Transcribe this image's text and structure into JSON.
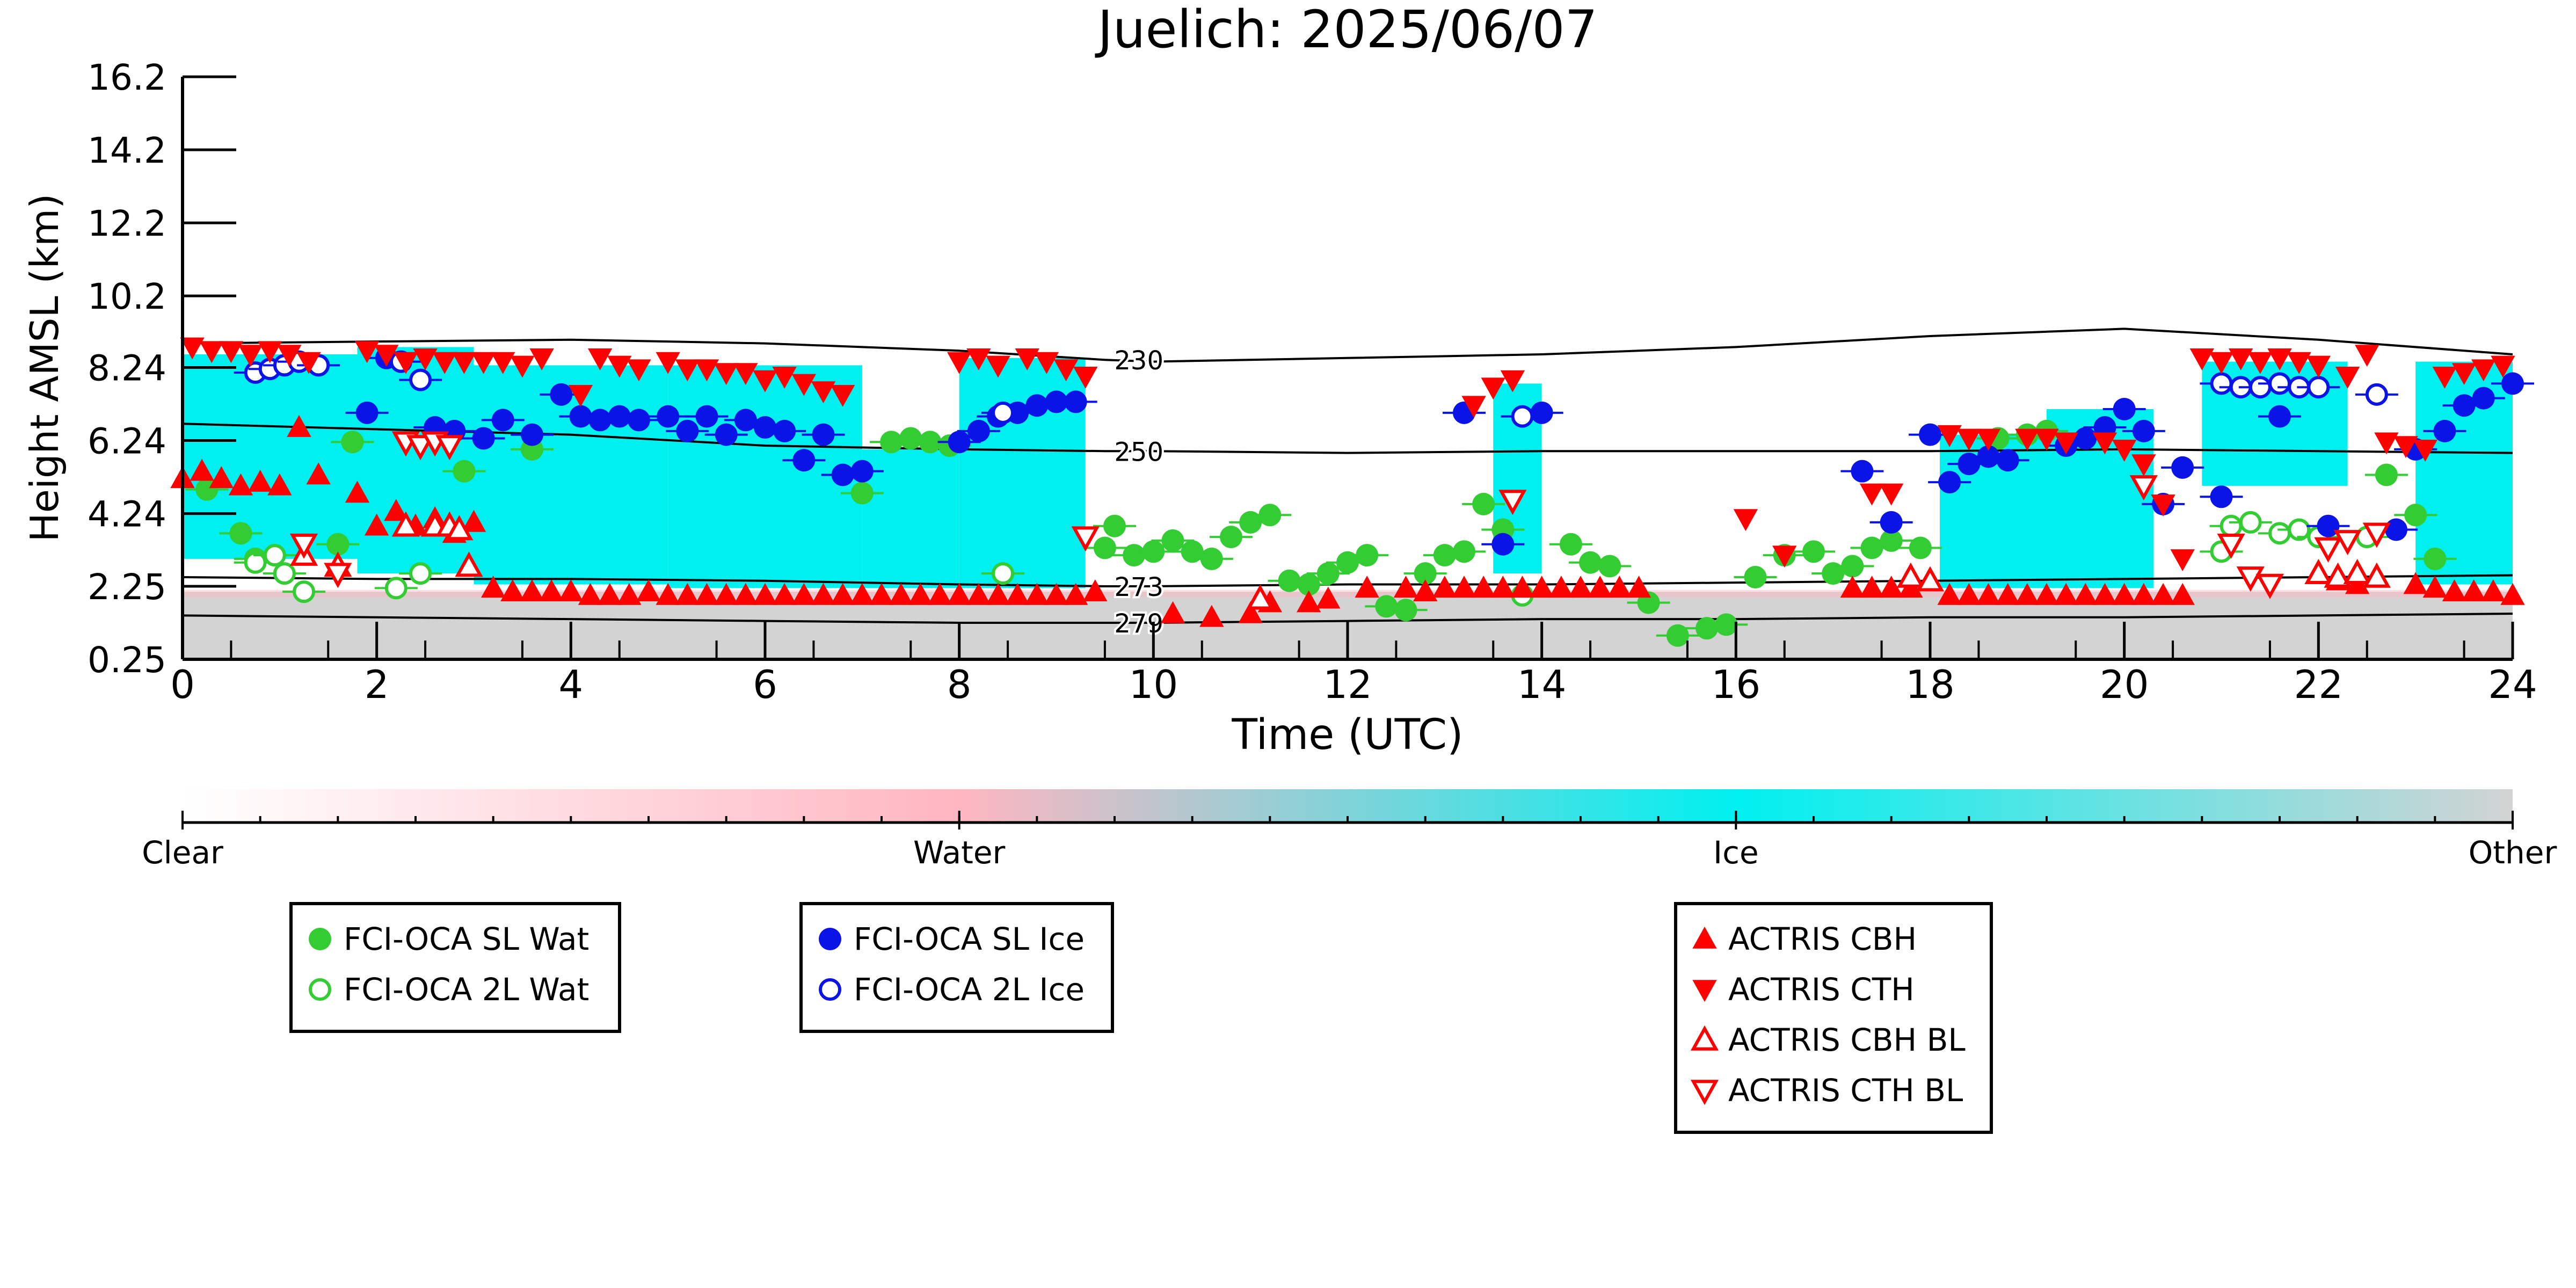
{
  "chart_data": {
    "type": "scatter",
    "title": "Juelich: 2025/06/07",
    "xlabel": "Time (UTC)",
    "ylabel": "Height AMSL (km)",
    "xlim": [
      0,
      24
    ],
    "ylim": [
      0.25,
      16.2
    ],
    "x_ticks": [
      0,
      2,
      4,
      6,
      8,
      10,
      12,
      14,
      16,
      18,
      20,
      22,
      24
    ],
    "y_ticks": [
      0.25,
      2.25,
      4.24,
      6.24,
      8.24,
      10.2,
      12.2,
      14.2,
      16.2
    ],
    "y_tick_labels": [
      "0.25",
      "2.25",
      "4.24",
      "6.24",
      "8.24",
      "10.2",
      "12.2",
      "14.2",
      "16.2"
    ],
    "grid": false,
    "background_layers": {
      "description_colors": {
        "clear": "#ffffff",
        "water": "#ffb6c1",
        "ice": "#00f0f0",
        "other": "#d3d3d3"
      },
      "ice_cloud_blocks": [
        {
          "x0": 0.0,
          "x1": 1.8,
          "top": 8.6,
          "bottom": 3.0
        },
        {
          "x0": 1.8,
          "x1": 3.0,
          "top": 8.8,
          "bottom": 2.6
        },
        {
          "x0": 3.0,
          "x1": 5.0,
          "top": 8.3,
          "bottom": 2.3
        },
        {
          "x0": 5.0,
          "x1": 7.0,
          "top": 8.3,
          "bottom": 2.2
        },
        {
          "x0": 7.0,
          "x1": 8.0,
          "top": 6.0,
          "bottom": 2.2
        },
        {
          "x0": 8.0,
          "x1": 9.3,
          "top": 8.5,
          "bottom": 2.2
        },
        {
          "x0": 13.5,
          "x1": 14.0,
          "top": 7.8,
          "bottom": 2.6
        },
        {
          "x0": 18.1,
          "x1": 19.2,
          "top": 6.4,
          "bottom": 2.2
        },
        {
          "x0": 19.2,
          "x1": 20.3,
          "top": 7.1,
          "bottom": 2.2
        },
        {
          "x0": 20.8,
          "x1": 22.3,
          "top": 8.4,
          "bottom": 5.0
        },
        {
          "x0": 23.0,
          "x1": 24.0,
          "top": 8.4,
          "bottom": 2.3
        }
      ],
      "other_band_top": 2.1
    },
    "isotherms": [
      {
        "label": "230",
        "x": [
          0,
          2,
          4,
          6,
          8,
          9.5,
          10,
          12,
          14,
          16,
          18,
          20,
          22,
          24
        ],
        "y": [
          8.9,
          8.95,
          9.0,
          8.9,
          8.7,
          8.45,
          8.4,
          8.5,
          8.6,
          8.8,
          9.1,
          9.3,
          9.0,
          8.6
        ]
      },
      {
        "label": "250",
        "x": [
          0,
          2,
          4,
          6,
          8,
          9.5,
          10,
          12,
          14,
          16,
          18,
          20,
          22,
          24
        ],
        "y": [
          6.7,
          6.55,
          6.4,
          6.1,
          6.0,
          5.95,
          5.95,
          5.9,
          5.95,
          5.95,
          5.95,
          6.0,
          5.95,
          5.9
        ]
      },
      {
        "label": "273",
        "x": [
          0,
          2,
          4,
          6,
          8,
          9.5,
          10,
          12,
          14,
          16,
          18,
          20,
          22,
          24
        ],
        "y": [
          2.5,
          2.45,
          2.45,
          2.4,
          2.3,
          2.25,
          2.25,
          2.3,
          2.3,
          2.35,
          2.4,
          2.45,
          2.5,
          2.55
        ]
      },
      {
        "label": "279",
        "x": [
          0,
          2,
          4,
          6,
          8,
          9.5,
          10,
          12,
          14,
          16,
          18,
          20,
          22,
          24
        ],
        "y": [
          1.45,
          1.4,
          1.35,
          1.3,
          1.25,
          1.25,
          1.25,
          1.3,
          1.35,
          1.35,
          1.4,
          1.4,
          1.45,
          1.5
        ]
      }
    ],
    "series": [
      {
        "name": "FCI-OCA SL Wat",
        "color": "#33cc33",
        "marker": "filled-circle",
        "x": [
          0.25,
          0.6,
          0.75,
          1.6,
          1.75,
          2.9,
          3.6,
          7.0,
          7.3,
          7.5,
          7.7,
          7.9,
          9.5,
          9.6,
          9.8,
          10.0,
          10.2,
          10.4,
          10.6,
          10.8,
          11.0,
          11.2,
          11.4,
          11.6,
          11.8,
          12.0,
          12.2,
          12.4,
          12.6,
          12.8,
          13.0,
          13.2,
          13.4,
          13.6,
          14.3,
          14.5,
          14.7,
          15.1,
          15.4,
          15.7,
          15.9,
          16.2,
          16.5,
          16.8,
          17.0,
          17.2,
          17.4,
          17.6,
          17.9,
          18.7,
          19.0,
          19.2,
          23.0,
          23.2,
          22.7
        ],
        "y": [
          4.9,
          3.7,
          3.0,
          3.4,
          6.2,
          5.4,
          6.0,
          4.8,
          6.2,
          6.3,
          6.2,
          6.1,
          3.3,
          3.9,
          3.1,
          3.2,
          3.5,
          3.2,
          3.0,
          3.6,
          4.0,
          4.2,
          2.4,
          2.3,
          2.6,
          2.9,
          3.1,
          1.7,
          1.6,
          2.6,
          3.1,
          3.2,
          4.5,
          3.8,
          3.4,
          2.9,
          2.8,
          1.8,
          0.9,
          1.1,
          1.2,
          2.5,
          3.1,
          3.2,
          2.6,
          2.8,
          3.3,
          3.5,
          3.3,
          6.3,
          6.4,
          6.5,
          4.2,
          3.0,
          5.3
        ]
      },
      {
        "name": "FCI-OCA 2L Wat",
        "color": "#33cc33",
        "marker": "open-circle",
        "x": [
          0.75,
          0.95,
          1.05,
          1.25,
          2.2,
          2.45,
          8.45,
          13.8,
          21.0,
          21.1,
          21.3,
          21.6,
          21.8,
          22.0,
          22.5
        ],
        "y": [
          2.9,
          3.1,
          2.6,
          2.1,
          2.2,
          2.6,
          2.6,
          2.0,
          3.2,
          3.9,
          4.0,
          3.7,
          3.8,
          3.6,
          3.6
        ]
      },
      {
        "name": "FCI-OCA SL Ice",
        "color": "#0a14e6",
        "marker": "filled-circle",
        "x": [
          1.9,
          2.1,
          2.6,
          2.8,
          3.1,
          3.3,
          3.6,
          3.9,
          4.1,
          4.3,
          4.5,
          4.7,
          5.0,
          5.2,
          5.4,
          5.6,
          5.8,
          6.0,
          6.2,
          6.4,
          6.6,
          6.8,
          7.0,
          8.0,
          8.2,
          8.4,
          8.6,
          8.8,
          9.0,
          9.2,
          13.6,
          14.0,
          13.2,
          17.3,
          17.6,
          18.0,
          18.2,
          18.4,
          18.6,
          18.8,
          19.4,
          19.6,
          19.8,
          20.0,
          20.2,
          20.4,
          20.6,
          21.0,
          21.6,
          22.1,
          22.8,
          23.0,
          23.3,
          23.5,
          23.7,
          24.0
        ],
        "y": [
          7.0,
          8.5,
          6.6,
          6.5,
          6.3,
          6.8,
          6.4,
          7.5,
          6.9,
          6.8,
          6.9,
          6.8,
          6.9,
          6.5,
          6.9,
          6.4,
          6.8,
          6.6,
          6.5,
          5.7,
          6.4,
          5.3,
          5.4,
          6.2,
          6.5,
          6.9,
          7.0,
          7.2,
          7.3,
          7.3,
          3.4,
          7.0,
          7.0,
          5.4,
          4.0,
          6.4,
          5.1,
          5.6,
          5.8,
          5.7,
          6.1,
          6.3,
          6.6,
          7.1,
          6.5,
          4.5,
          5.5,
          4.7,
          6.9,
          3.9,
          3.8,
          6.0,
          6.5,
          7.2,
          7.4,
          7.8
        ]
      },
      {
        "name": "FCI-OCA 2L Ice",
        "color": "#0a14e6",
        "marker": "open-circle",
        "x": [
          0.75,
          0.9,
          1.05,
          1.2,
          1.4,
          2.25,
          2.45,
          8.45,
          13.8,
          21.0,
          21.2,
          21.4,
          21.6,
          21.8,
          22.0,
          22.6
        ],
        "y": [
          8.1,
          8.2,
          8.3,
          8.4,
          8.3,
          8.4,
          7.9,
          7.0,
          6.9,
          7.8,
          7.7,
          7.7,
          7.8,
          7.7,
          7.7,
          7.5
        ]
      },
      {
        "name": "ACTRIS CBH",
        "color": "#ff0000",
        "marker": "filled-triangle-up",
        "x": [
          0.0,
          0.2,
          0.4,
          0.6,
          0.8,
          1.0,
          1.2,
          1.4,
          1.8,
          2.0,
          2.2,
          2.4,
          2.6,
          2.8,
          3.0,
          3.2,
          3.4,
          3.6,
          3.8,
          4.0,
          4.2,
          4.4,
          4.6,
          4.8,
          5.0,
          5.2,
          5.4,
          5.6,
          5.8,
          6.0,
          6.2,
          6.4,
          6.6,
          6.8,
          7.0,
          7.2,
          7.4,
          7.6,
          7.8,
          8.0,
          8.2,
          8.4,
          8.6,
          8.8,
          9.0,
          9.2,
          9.4,
          10.2,
          10.6,
          11.0,
          11.2,
          11.6,
          11.8,
          12.2,
          12.6,
          12.8,
          13.0,
          13.2,
          13.4,
          13.6,
          13.8,
          14.0,
          14.2,
          14.4,
          14.6,
          14.8,
          15.0,
          17.2,
          17.4,
          17.6,
          17.8,
          18.2,
          18.4,
          18.6,
          18.8,
          19.0,
          19.2,
          19.4,
          19.6,
          19.8,
          20.0,
          20.2,
          20.4,
          20.6,
          22.2,
          22.4,
          23.0,
          23.2,
          23.4,
          23.6,
          23.8,
          24.0
        ],
        "y": [
          5.2,
          5.4,
          5.2,
          5.0,
          5.1,
          5.0,
          6.6,
          5.3,
          4.8,
          3.9,
          4.3,
          3.9,
          4.1,
          3.7,
          4.0,
          2.2,
          2.1,
          2.1,
          2.1,
          2.1,
          2.0,
          2.0,
          2.0,
          2.1,
          2.0,
          2.0,
          2.0,
          2.0,
          2.0,
          2.0,
          2.0,
          2.0,
          2.0,
          2.0,
          2.0,
          2.0,
          2.0,
          2.0,
          2.0,
          2.0,
          2.0,
          2.0,
          2.0,
          2.0,
          2.0,
          2.0,
          2.1,
          1.5,
          1.4,
          1.5,
          1.8,
          1.8,
          1.9,
          2.2,
          2.2,
          2.1,
          2.2,
          2.2,
          2.2,
          2.2,
          2.2,
          2.2,
          2.2,
          2.2,
          2.2,
          2.2,
          2.2,
          2.2,
          2.2,
          2.2,
          2.2,
          2.0,
          2.0,
          2.0,
          2.0,
          2.0,
          2.0,
          2.0,
          2.0,
          2.0,
          2.0,
          2.0,
          2.0,
          2.0,
          2.4,
          2.3,
          2.3,
          2.2,
          2.1,
          2.1,
          2.1,
          2.0
        ]
      },
      {
        "name": "ACTRIS CTH",
        "color": "#ff0000",
        "marker": "filled-triangle-down",
        "x": [
          0.1,
          0.3,
          0.5,
          0.7,
          0.9,
          1.1,
          1.3,
          1.9,
          2.1,
          2.3,
          2.5,
          2.7,
          2.9,
          3.1,
          3.3,
          3.5,
          3.7,
          4.1,
          4.3,
          4.5,
          4.7,
          5.0,
          5.2,
          5.4,
          5.6,
          5.8,
          6.0,
          6.2,
          6.4,
          6.6,
          6.8,
          8.0,
          8.2,
          8.4,
          8.7,
          8.9,
          9.1,
          9.3,
          13.3,
          13.5,
          13.7,
          16.1,
          16.5,
          17.4,
          17.6,
          18.2,
          18.4,
          18.6,
          19.0,
          19.2,
          19.4,
          19.8,
          20.0,
          20.2,
          20.4,
          20.6,
          20.8,
          21.0,
          21.2,
          21.4,
          21.6,
          21.8,
          22.0,
          22.3,
          22.5,
          22.7,
          22.9,
          23.1,
          23.3,
          23.5,
          23.7,
          23.9
        ],
        "y": [
          8.8,
          8.7,
          8.7,
          8.6,
          8.7,
          8.6,
          8.4,
          8.7,
          8.6,
          8.4,
          8.5,
          8.4,
          8.4,
          8.4,
          8.4,
          8.3,
          8.5,
          7.5,
          8.5,
          8.3,
          8.2,
          8.4,
          8.2,
          8.2,
          8.1,
          8.1,
          7.9,
          8.0,
          7.8,
          7.6,
          7.5,
          8.4,
          8.5,
          8.3,
          8.5,
          8.4,
          8.2,
          8.0,
          7.2,
          7.7,
          7.9,
          4.1,
          3.1,
          4.8,
          4.8,
          6.4,
          6.3,
          6.3,
          6.3,
          6.3,
          6.2,
          6.2,
          6.0,
          5.6,
          4.5,
          3.0,
          8.5,
          8.4,
          8.5,
          8.4,
          8.5,
          8.4,
          8.3,
          8.0,
          8.6,
          6.2,
          6.1,
          6.0,
          8.0,
          8.1,
          8.2,
          8.3
        ]
      },
      {
        "name": "ACTRIS CBH BL",
        "color": "#ff0000",
        "marker": "open-triangle-up",
        "x": [
          1.25,
          1.6,
          2.3,
          2.6,
          2.75,
          2.85,
          2.95,
          11.1,
          17.8,
          18.0,
          22.0,
          22.2,
          22.4,
          22.6
        ],
        "y": [
          3.1,
          2.8,
          3.9,
          3.9,
          3.9,
          3.8,
          2.8,
          1.9,
          2.5,
          2.4,
          2.6,
          2.5,
          2.6,
          2.5
        ]
      },
      {
        "name": "ACTRIS CTH BL",
        "color": "#ff0000",
        "marker": "open-triangle-down",
        "x": [
          1.25,
          1.6,
          2.3,
          2.45,
          2.6,
          2.75,
          9.3,
          13.7,
          20.2,
          21.1,
          21.3,
          21.5,
          22.1,
          22.3,
          22.6
        ],
        "y": [
          3.4,
          2.6,
          6.2,
          6.1,
          6.2,
          6.1,
          3.6,
          4.6,
          5.0,
          3.4,
          2.5,
          2.3,
          3.3,
          3.5,
          3.7
        ]
      }
    ],
    "colorbar": {
      "labels": [
        "Clear",
        "Water",
        "Ice",
        "Other"
      ],
      "colors": [
        "#ffffff",
        "#ffb6c1",
        "#00f0f0",
        "#d3d3d3"
      ]
    },
    "legends": [
      {
        "entries": [
          "FCI-OCA SL Wat",
          "FCI-OCA 2L Wat"
        ]
      },
      {
        "entries": [
          "FCI-OCA SL Ice",
          "FCI-OCA 2L Ice"
        ]
      },
      {
        "entries": [
          "ACTRIS CBH",
          "ACTRIS CTH",
          "ACTRIS CBH BL",
          "ACTRIS CTH BL"
        ]
      }
    ]
  }
}
